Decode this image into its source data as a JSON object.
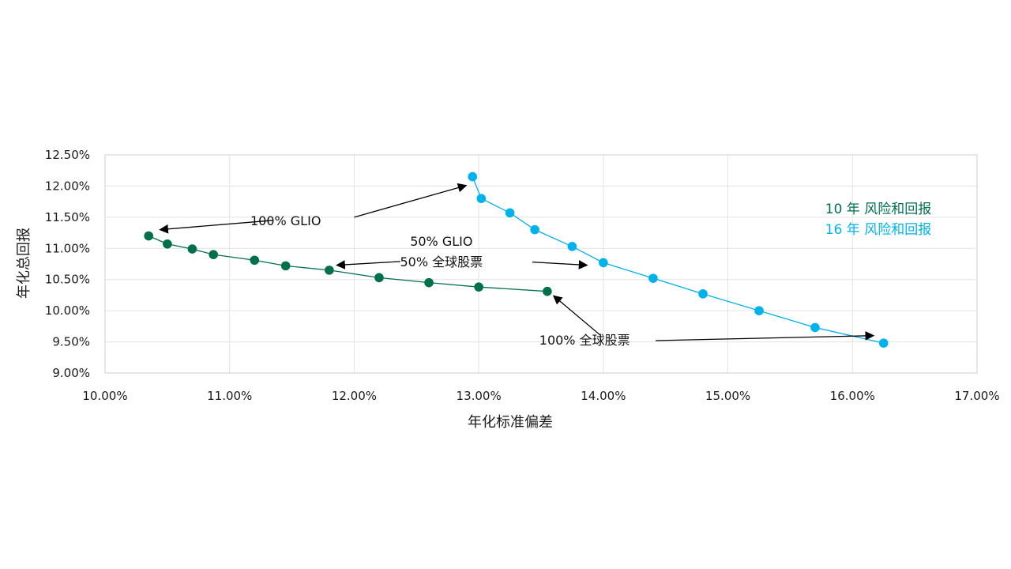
{
  "chart_data": {
    "type": "scatter",
    "title": "",
    "xlabel": "年化标准偏差",
    "ylabel": "年化总回报",
    "xlim": [
      10.0,
      17.0
    ],
    "ylim": [
      9.0,
      12.5
    ],
    "x_ticks": [
      "10.00%",
      "11.00%",
      "12.00%",
      "13.00%",
      "14.00%",
      "15.00%",
      "16.00%",
      "17.00%"
    ],
    "y_ticks": [
      "9.00%",
      "9.50%",
      "10.00%",
      "10.50%",
      "11.00%",
      "11.50%",
      "12.00%",
      "12.50%"
    ],
    "grid": true,
    "legend_position": "right",
    "series": [
      {
        "name": "10 年 风险和回报",
        "color": "#00704A",
        "points": [
          [
            10.35,
            11.2
          ],
          [
            10.5,
            11.07
          ],
          [
            10.7,
            10.99
          ],
          [
            10.87,
            10.9
          ],
          [
            11.2,
            10.81
          ],
          [
            11.45,
            10.72
          ],
          [
            11.8,
            10.65
          ],
          [
            12.2,
            10.53
          ],
          [
            12.6,
            10.45
          ],
          [
            13.0,
            10.38
          ],
          [
            13.55,
            10.31
          ]
        ]
      },
      {
        "name": "16 年 风险和回报",
        "color": "#00B2EC",
        "points": [
          [
            12.95,
            12.15
          ],
          [
            13.02,
            11.8
          ],
          [
            13.25,
            11.57
          ],
          [
            13.45,
            11.3
          ],
          [
            13.75,
            11.03
          ],
          [
            14.0,
            10.77
          ],
          [
            14.4,
            10.52
          ],
          [
            14.8,
            10.27
          ],
          [
            15.25,
            10.0
          ],
          [
            15.7,
            9.73
          ],
          [
            16.25,
            9.48
          ]
        ]
      }
    ],
    "annotations": [
      {
        "id": "glio100",
        "text": "100% GLIO",
        "anchor": [
          11.45,
          11.45
        ],
        "arrows": [
          {
            "from": [
              11.35,
              11.45
            ],
            "to": [
              10.44,
              11.3
            ]
          },
          {
            "from": [
              12.0,
              11.5
            ],
            "to": [
              12.9,
              12.01
            ]
          }
        ]
      },
      {
        "id": "glio50",
        "text": "50% GLIO",
        "anchor": [
          12.7,
          11.12
        ],
        "arrows": []
      },
      {
        "id": "eq50",
        "text": "50%  全球股票",
        "anchor": [
          12.7,
          10.79
        ],
        "arrows": [
          {
            "from": [
              12.37,
              10.79
            ],
            "to": [
              11.86,
              10.73
            ]
          },
          {
            "from": [
              13.43,
              10.78
            ],
            "to": [
              13.87,
              10.73
            ]
          }
        ]
      },
      {
        "id": "eq100",
        "text": "100%  全球股票",
        "anchor": [
          13.85,
          9.53
        ],
        "arrows": [
          {
            "from": [
              13.98,
              9.6
            ],
            "to": [
              13.6,
              10.24
            ]
          },
          {
            "from": [
              14.42,
              9.52
            ],
            "to": [
              16.17,
              9.6
            ]
          }
        ]
      }
    ]
  }
}
